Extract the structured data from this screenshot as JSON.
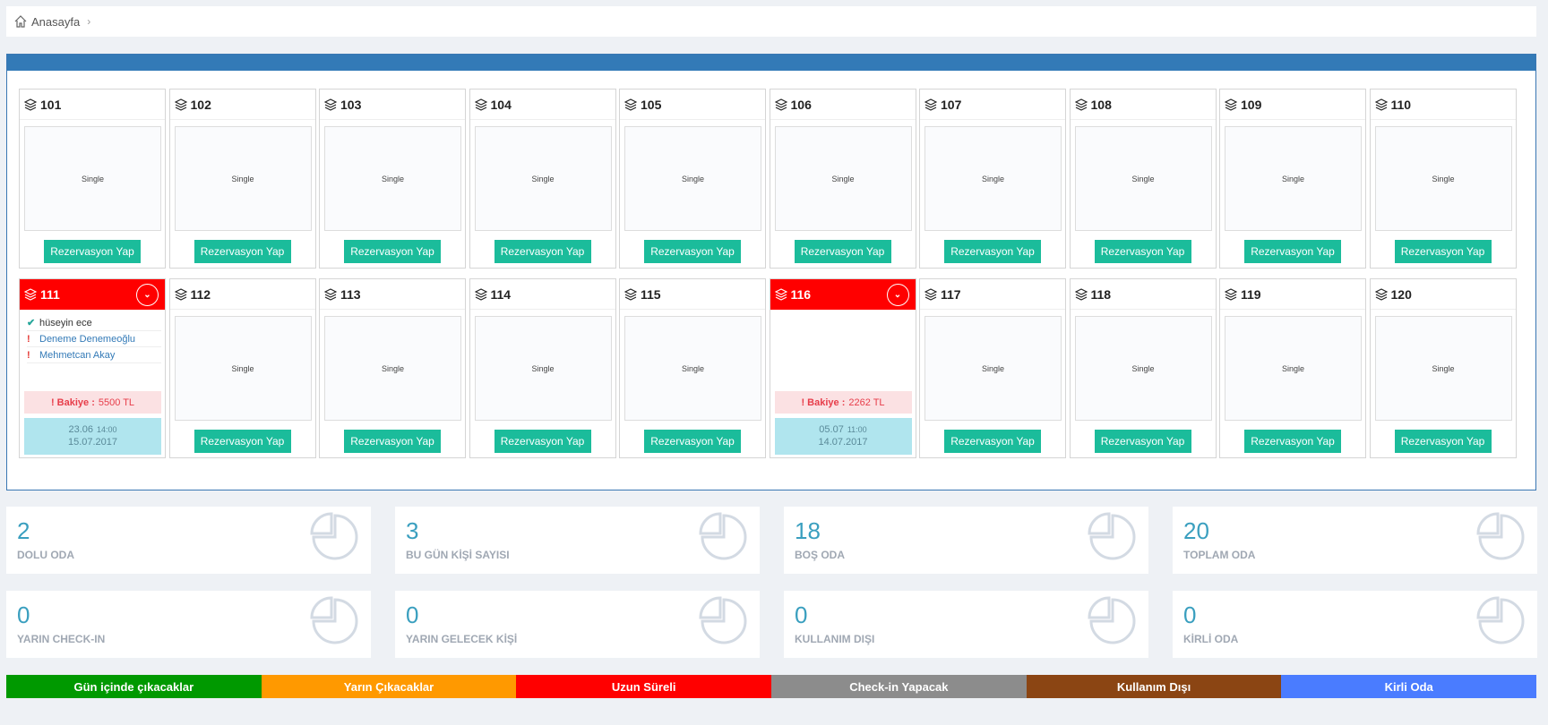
{
  "breadcrumb": {
    "home": "Anasayfa"
  },
  "button_label": "Rezervasyon Yap",
  "rooms_row1": [
    {
      "no": "101",
      "type": "Single"
    },
    {
      "no": "102",
      "type": "Single"
    },
    {
      "no": "103",
      "type": "Single"
    },
    {
      "no": "104",
      "type": "Single"
    },
    {
      "no": "105",
      "type": "Single"
    },
    {
      "no": "106",
      "type": "Single"
    },
    {
      "no": "107",
      "type": "Single"
    },
    {
      "no": "108",
      "type": "Single"
    },
    {
      "no": "109",
      "type": "Single"
    },
    {
      "no": "110",
      "type": "Single"
    }
  ],
  "rooms_row2": [
    {
      "no": "111",
      "occupied": true,
      "guests": [
        {
          "name": "hüseyin ece",
          "status": "ok"
        },
        {
          "name": "Deneme Denemeoğlu",
          "status": "warn"
        },
        {
          "name": "Mehmetcan Akay",
          "status": "warn"
        }
      ],
      "balance_label": "! Bakiye :",
      "balance": "5500 TL",
      "checkin": "23.06",
      "checkin_time": "14:00",
      "checkout": "15.07.2017"
    },
    {
      "no": "112",
      "type": "Single"
    },
    {
      "no": "113",
      "type": "Single"
    },
    {
      "no": "114",
      "type": "Single"
    },
    {
      "no": "115",
      "type": "Single"
    },
    {
      "no": "116",
      "occupied": true,
      "guests": [],
      "balance_label": "! Bakiye :",
      "balance": "2262 TL",
      "checkin": "05.07",
      "checkin_time": "11:00",
      "checkout": "14.07.2017"
    },
    {
      "no": "117",
      "type": "Single"
    },
    {
      "no": "118",
      "type": "Single"
    },
    {
      "no": "119",
      "type": "Single"
    },
    {
      "no": "120",
      "type": "Single"
    }
  ],
  "stats": [
    {
      "value": "2",
      "label": "DOLU ODA"
    },
    {
      "value": "3",
      "label": "BU GÜN KİŞİ SAYISI"
    },
    {
      "value": "18",
      "label": "BOŞ ODA"
    },
    {
      "value": "20",
      "label": "TOPLAM ODA"
    },
    {
      "value": "0",
      "label": "YARIN CHECK-IN"
    },
    {
      "value": "0",
      "label": "YARIN GELECEK KİŞİ"
    },
    {
      "value": "0",
      "label": "KULLANIM DIŞI"
    },
    {
      "value": "0",
      "label": "KİRLİ ODA"
    }
  ],
  "legend": [
    {
      "label": "Gün içinde çıkacaklar",
      "color": "#009900"
    },
    {
      "label": "Yarın Çıkacaklar",
      "color": "#ff9900"
    },
    {
      "label": "Uzun Süreli",
      "color": "#ff0000"
    },
    {
      "label": "Check-in Yapacak",
      "color": "#8c8c8c"
    },
    {
      "label": "Kullanım Dışı",
      "color": "#8b4513"
    },
    {
      "label": "Kirli Oda",
      "color": "#4a7cff"
    }
  ],
  "colors": {
    "accent": "#337ab7",
    "button": "#1bbc9b",
    "occupied": "#ff0000"
  }
}
